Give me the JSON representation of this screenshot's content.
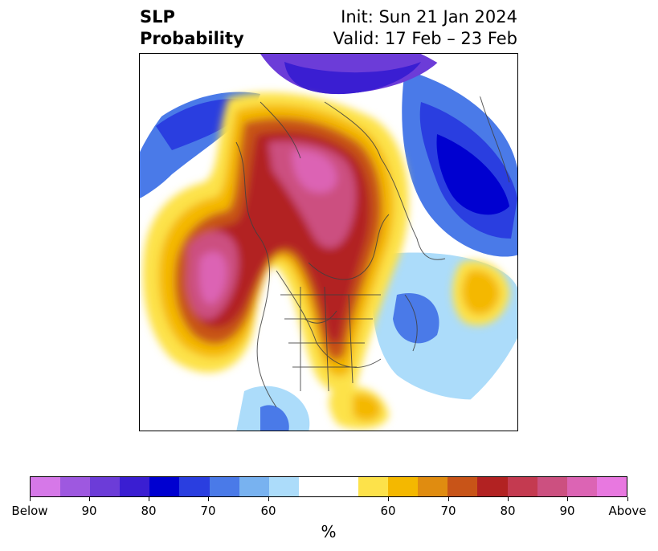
{
  "header": {
    "title_line1": "SLP",
    "title_line2": "Probability",
    "init_text": "Init: Sun 21 Jan 2024",
    "valid_text": "Valid: 17 Feb – 23 Feb"
  },
  "colorbar": {
    "unit_label": "%",
    "colors": [
      "#d678e8",
      "#9e58e0",
      "#6c3cd8",
      "#3a1ed2",
      "#0000d0",
      "#2a3ee0",
      "#4a7ae8",
      "#78b2f0",
      "#acdcfa",
      "#ffffff",
      "#ffffff",
      "#fde24a",
      "#f4b800",
      "#e08c10",
      "#c85418",
      "#b22222",
      "#c43a50",
      "#cc5080",
      "#dc64b4",
      "#e878e0"
    ],
    "ticks": [
      "Below",
      "90",
      "80",
      "70",
      "60",
      "60",
      "70",
      "80",
      "90",
      "Above"
    ]
  },
  "colors": {
    "below_strong": "#3a1ed2",
    "above_strong": "#c43a50"
  }
}
